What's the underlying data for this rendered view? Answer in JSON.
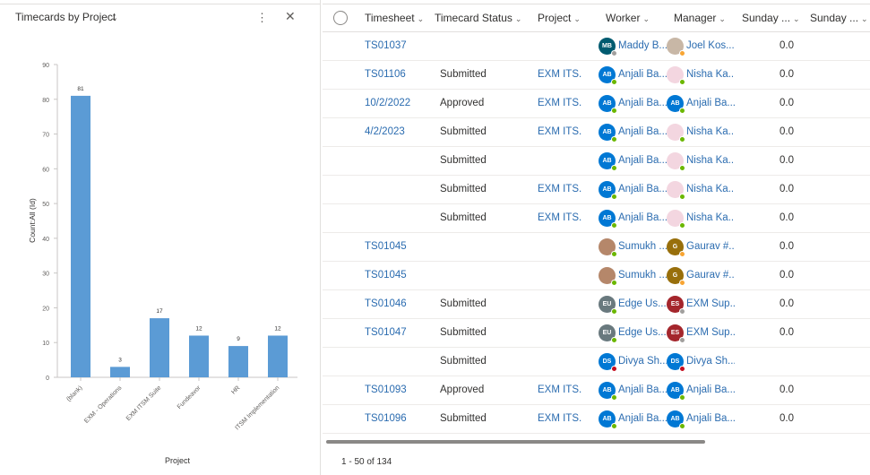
{
  "chart_panel": {
    "title": "Timecards by Project",
    "more_icon": "more-vertical-icon",
    "close_icon": "close-icon"
  },
  "chart_data": {
    "type": "bar",
    "title": "Timecards by Project",
    "xlabel": "Project",
    "ylabel": "Count:All (Id)",
    "categories": [
      "(blank)",
      "EXM - Operations",
      "EXM ITSM Suite",
      "Fundeavor",
      "HR",
      "ITSM Implementation"
    ],
    "values": [
      81,
      3,
      17,
      12,
      9,
      12
    ],
    "ylim": [
      0,
      90
    ],
    "yticks": [
      0,
      10,
      20,
      30,
      40,
      50,
      60,
      70,
      80,
      90
    ],
    "data_labels": true,
    "color": "#5b9bd5"
  },
  "grid": {
    "columns": [
      {
        "label": "Timesheet"
      },
      {
        "label": "Timecard Status"
      },
      {
        "label": "Project"
      },
      {
        "label": "Worker"
      },
      {
        "label": "Manager"
      },
      {
        "label": "Sunday ..."
      },
      {
        "label": "Sunday ..."
      }
    ],
    "rows": [
      {
        "timesheet": "TS01037",
        "status": "",
        "project": "",
        "worker": {
          "initials": "MB",
          "name": "Maddy B...",
          "color": "#005b70",
          "presence": "grey"
        },
        "manager": {
          "initials": "",
          "name": "Joel Kos...",
          "color": "#c8b7a6",
          "presence": "orange",
          "photo": true
        },
        "sunday": "0.0"
      },
      {
        "timesheet": "TS01106",
        "status": "Submitted",
        "project": "EXM ITS...",
        "worker": {
          "initials": "AB",
          "name": "Anjali Ba...",
          "color": "#0078d4",
          "presence": "green"
        },
        "manager": {
          "initials": "",
          "name": "Nisha Ka...",
          "color": "#f3d6e0",
          "presence": "green",
          "photo": true
        },
        "sunday": "0.0"
      },
      {
        "timesheet": "10/2/2022",
        "status": "Approved",
        "project": "EXM ITS...",
        "worker": {
          "initials": "AB",
          "name": "Anjali Ba...",
          "color": "#0078d4",
          "presence": "green"
        },
        "manager": {
          "initials": "AB",
          "name": "Anjali Ba...",
          "color": "#0078d4",
          "presence": "green"
        },
        "sunday": "0.0"
      },
      {
        "timesheet": "4/2/2023",
        "status": "Submitted",
        "project": "EXM ITS...",
        "worker": {
          "initials": "AB",
          "name": "Anjali Ba...",
          "color": "#0078d4",
          "presence": "green"
        },
        "manager": {
          "initials": "",
          "name": "Nisha Ka...",
          "color": "#f3d6e0",
          "presence": "green",
          "photo": true
        },
        "sunday": "0.0"
      },
      {
        "timesheet": "",
        "status": "Submitted",
        "project": "",
        "worker": {
          "initials": "AB",
          "name": "Anjali Ba...",
          "color": "#0078d4",
          "presence": "green"
        },
        "manager": {
          "initials": "",
          "name": "Nisha Ka...",
          "color": "#f3d6e0",
          "presence": "green",
          "photo": true
        },
        "sunday": "0.0"
      },
      {
        "timesheet": "",
        "status": "Submitted",
        "project": "EXM ITS...",
        "worker": {
          "initials": "AB",
          "name": "Anjali Ba...",
          "color": "#0078d4",
          "presence": "green"
        },
        "manager": {
          "initials": "",
          "name": "Nisha Ka...",
          "color": "#f3d6e0",
          "presence": "green",
          "photo": true
        },
        "sunday": "0.0"
      },
      {
        "timesheet": "",
        "status": "Submitted",
        "project": "EXM ITS...",
        "worker": {
          "initials": "AB",
          "name": "Anjali Ba...",
          "color": "#0078d4",
          "presence": "green"
        },
        "manager": {
          "initials": "",
          "name": "Nisha Ka...",
          "color": "#f3d6e0",
          "presence": "green",
          "photo": true
        },
        "sunday": "0.0"
      },
      {
        "timesheet": "TS01045",
        "status": "",
        "project": "",
        "worker": {
          "initials": "",
          "name": "Sumukh ...",
          "color": "#b5876a",
          "presence": "green",
          "photo": true
        },
        "manager": {
          "initials": "G",
          "name": "Gaurav #...",
          "color": "#986f0b",
          "presence": "orange"
        },
        "sunday": "0.0"
      },
      {
        "timesheet": "TS01045",
        "status": "",
        "project": "",
        "worker": {
          "initials": "",
          "name": "Sumukh ...",
          "color": "#b5876a",
          "presence": "green",
          "photo": true
        },
        "manager": {
          "initials": "G",
          "name": "Gaurav #...",
          "color": "#986f0b",
          "presence": "orange"
        },
        "sunday": "0.0"
      },
      {
        "timesheet": "TS01046",
        "status": "Submitted",
        "project": "",
        "worker": {
          "initials": "EU",
          "name": "Edge Us...",
          "color": "#69797e",
          "presence": "green"
        },
        "manager": {
          "initials": "ES",
          "name": "EXM Sup...",
          "color": "#a4262c",
          "presence": "grey"
        },
        "sunday": "0.0"
      },
      {
        "timesheet": "TS01047",
        "status": "Submitted",
        "project": "",
        "worker": {
          "initials": "EU",
          "name": "Edge Us...",
          "color": "#69797e",
          "presence": "green"
        },
        "manager": {
          "initials": "ES",
          "name": "EXM Sup...",
          "color": "#a4262c",
          "presence": "grey"
        },
        "sunday": "0.0"
      },
      {
        "timesheet": "",
        "status": "Submitted",
        "project": "",
        "worker": {
          "initials": "DS",
          "name": "Divya Sh...",
          "color": "#0078d4",
          "presence": "red"
        },
        "manager": {
          "initials": "DS",
          "name": "Divya Sh...",
          "color": "#0078d4",
          "presence": "red"
        },
        "sunday": ""
      },
      {
        "timesheet": "TS01093",
        "status": "Approved",
        "project": "EXM ITS...",
        "worker": {
          "initials": "AB",
          "name": "Anjali Ba...",
          "color": "#0078d4",
          "presence": "green"
        },
        "manager": {
          "initials": "AB",
          "name": "Anjali Ba...",
          "color": "#0078d4",
          "presence": "green"
        },
        "sunday": "0.0"
      },
      {
        "timesheet": "TS01096",
        "status": "Submitted",
        "project": "EXM ITS...",
        "worker": {
          "initials": "AB",
          "name": "Anjali Ba...",
          "color": "#0078d4",
          "presence": "green"
        },
        "manager": {
          "initials": "AB",
          "name": "Anjali Ba...",
          "color": "#0078d4",
          "presence": "green"
        },
        "sunday": "0.0"
      }
    ],
    "pager": "1 - 50 of 134"
  }
}
